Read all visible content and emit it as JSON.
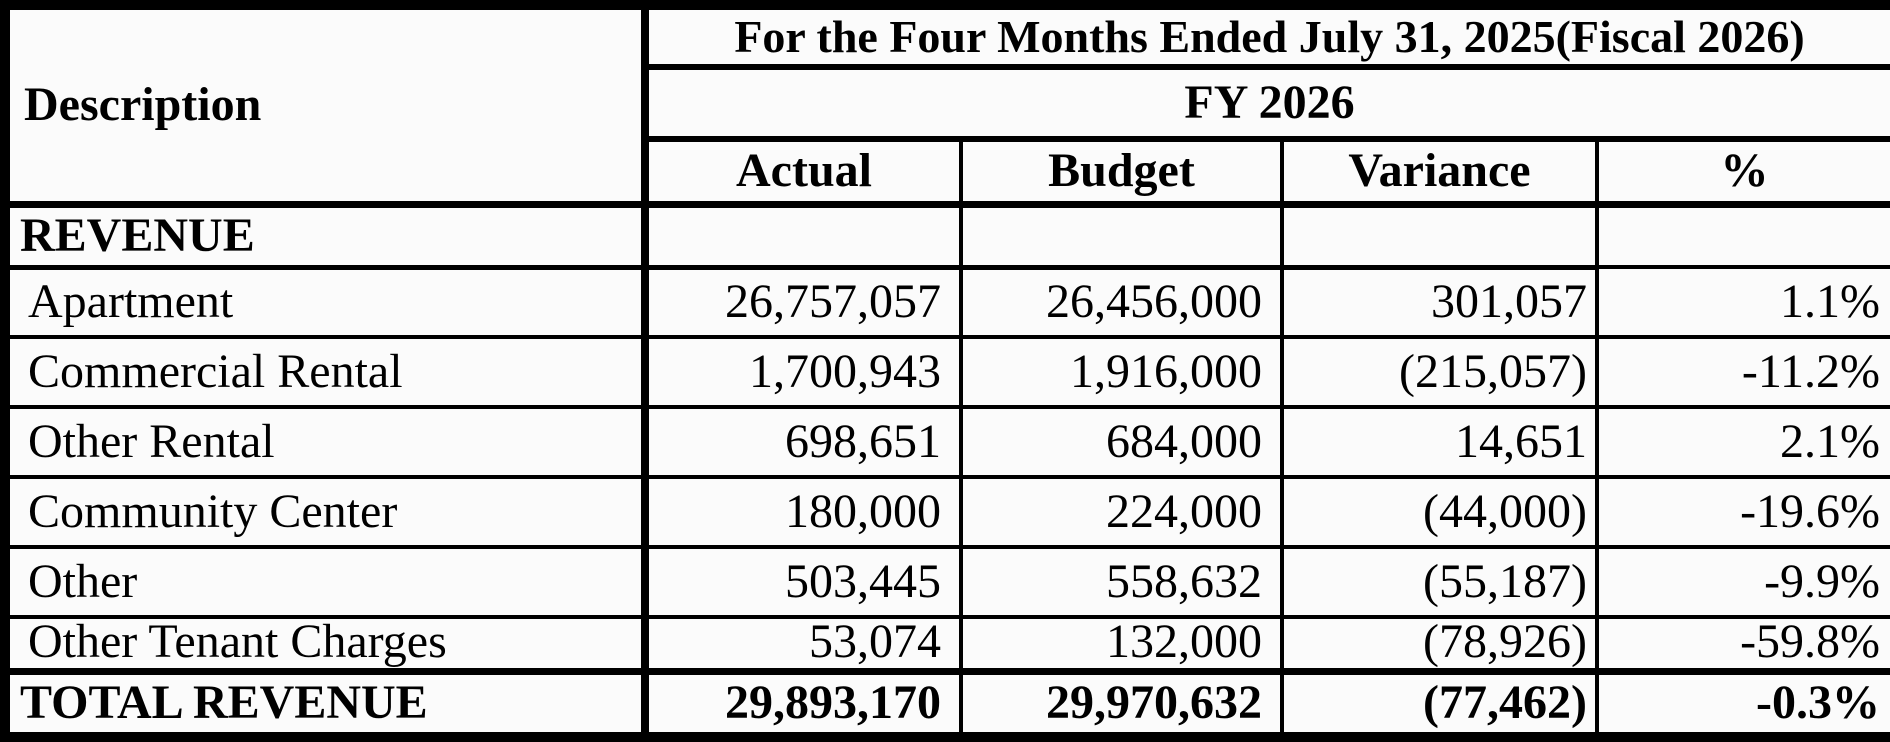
{
  "header": {
    "description_label": "Description",
    "period_title": "For the Four Months Ended July 31, 2025(Fiscal 2026)",
    "fiscal_year": "FY 2026",
    "columns": [
      "Actual",
      "Budget",
      "Variance",
      "%"
    ]
  },
  "section": {
    "label": "REVENUE"
  },
  "rows": [
    {
      "label": "Apartment",
      "actual": "26,757,057",
      "budget": "26,456,000",
      "variance": "301,057",
      "pct": "1.1%"
    },
    {
      "label": "Commercial Rental",
      "actual": "1,700,943",
      "budget": "1,916,000",
      "variance": "(215,057)",
      "pct": "-11.2%"
    },
    {
      "label": "Other Rental",
      "actual": "698,651",
      "budget": "684,000",
      "variance": "14,651",
      "pct": "2.1%"
    },
    {
      "label": "Community Center",
      "actual": "180,000",
      "budget": "224,000",
      "variance": "(44,000)",
      "pct": "-19.6%"
    },
    {
      "label": "Other",
      "actual": "503,445",
      "budget": "558,632",
      "variance": "(55,187)",
      "pct": "-9.9%"
    },
    {
      "label": "Other Tenant Charges",
      "actual": "53,074",
      "budget": "132,000",
      "variance": "(78,926)",
      "pct": "-59.8%"
    }
  ],
  "total": {
    "label": "TOTAL REVENUE",
    "actual": "29,893,170",
    "budget": "29,970,632",
    "variance": "(77,462)",
    "pct": "-0.3%"
  },
  "colors": {
    "border": "#000000",
    "cell_background": "#fbfbfb",
    "text": "#000000"
  }
}
